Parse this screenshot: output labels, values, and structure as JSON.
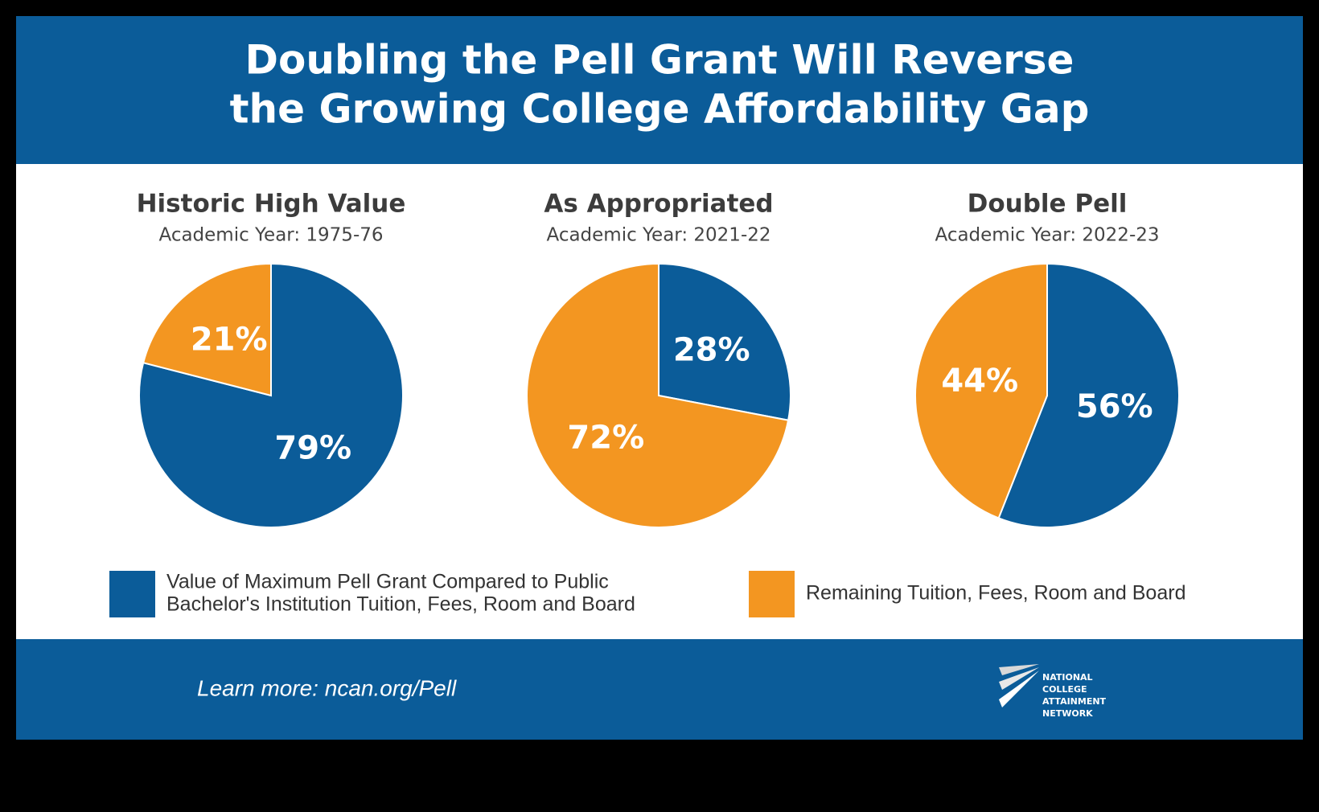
{
  "header": {
    "title_lines": [
      "Doubling the Pell Grant Will Reverse",
      "the Growing College Affordability Gap"
    ]
  },
  "chart_data": [
    {
      "type": "pie",
      "title": "Historic High Value",
      "subtitle": "Academic Year: 1975-76",
      "values": [
        79,
        21
      ],
      "value_labels": [
        "79%",
        "21%"
      ]
    },
    {
      "type": "pie",
      "title": "As Appropriated",
      "subtitle": "Academic Year: 2021-22",
      "values": [
        28,
        72
      ],
      "value_labels": [
        "28%",
        "72%"
      ]
    },
    {
      "type": "pie",
      "title": "Double Pell",
      "subtitle": "Academic Year: 2022-23",
      "values": [
        56,
        44
      ],
      "value_labels": [
        "56%",
        "44%"
      ]
    }
  ],
  "legend": {
    "items": [
      {
        "label_lines": [
          "Value of Maximum Pell Grant Compared to Public",
          "Bachelor's Institution Tuition, Fees, Room and Board"
        ],
        "color": "#0b5c99"
      },
      {
        "label_lines": [
          "Remaining Tuition, Fees, Room and Board"
        ],
        "color": "#f39621"
      }
    ]
  },
  "footer": {
    "link_text": "Learn more: ncan.org/Pell",
    "logo_lines": [
      "NATIONAL",
      "COLLEGE",
      "ATTAINMENT",
      "NETWORK"
    ]
  }
}
